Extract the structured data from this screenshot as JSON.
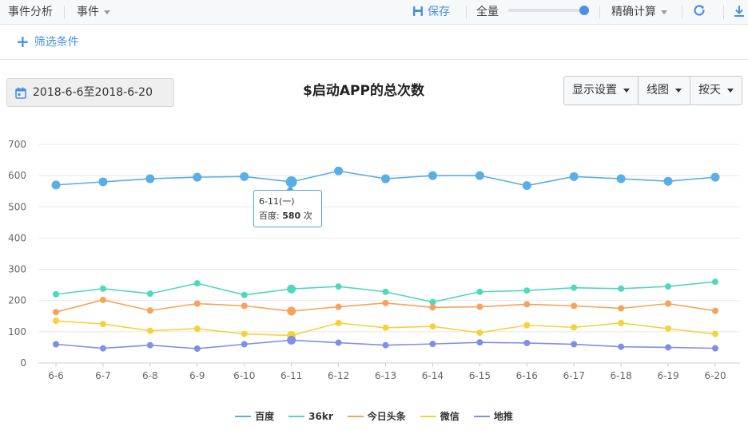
{
  "toolbar": {
    "analysis_label": "事件分析",
    "event_label": "事件",
    "save_label": "保存",
    "scope_label": "全量",
    "precise_label": "精确计算"
  },
  "filter": {
    "add_label": "筛选条件"
  },
  "date_range": "2018-6-6至2018-6-20",
  "controls": {
    "display_settings": "显示设置",
    "chart_type": "线图",
    "granularity": "按天"
  },
  "tooltip": {
    "date": "6-11(一)",
    "series": "百度",
    "separator": ":",
    "value": "580",
    "unit": "次"
  },
  "chart_data": {
    "type": "line",
    "title": "$启动APP的总次数",
    "xlabel": "",
    "ylabel": "",
    "ylim": [
      0,
      700
    ],
    "yticks": [
      0,
      100,
      200,
      300,
      400,
      500,
      600,
      700
    ],
    "grid": true,
    "legend_position": "bottom",
    "categories": [
      "6-6",
      "6-7",
      "6-8",
      "6-9",
      "6-10",
      "6-11",
      "6-12",
      "6-13",
      "6-14",
      "6-15",
      "6-16",
      "6-17",
      "6-18",
      "6-19",
      "6-20"
    ],
    "highlight_index": 5,
    "series": [
      {
        "name": "百度",
        "color": "#5aaee6",
        "values": [
          570,
          580,
          590,
          595,
          597,
          580,
          615,
          590,
          600,
          600,
          568,
          597,
          590,
          582,
          595
        ]
      },
      {
        "name": "36kr",
        "color": "#4fd8bc",
        "values": [
          220,
          238,
          222,
          255,
          218,
          237,
          245,
          228,
          195,
          228,
          232,
          241,
          238,
          245,
          260
        ]
      },
      {
        "name": "今日头条",
        "color": "#f5a35a",
        "values": [
          163,
          202,
          168,
          190,
          183,
          166,
          180,
          192,
          178,
          180,
          188,
          183,
          175,
          190,
          167
        ]
      },
      {
        "name": "微信",
        "color": "#f5d23c",
        "values": [
          135,
          125,
          103,
          110,
          93,
          88,
          128,
          113,
          117,
          97,
          121,
          114,
          128,
          110,
          93
        ]
      },
      {
        "name": "地推",
        "color": "#7f8fe6",
        "values": [
          60,
          47,
          57,
          46,
          60,
          73,
          65,
          57,
          61,
          66,
          64,
          60,
          52,
          50,
          47
        ]
      }
    ]
  }
}
